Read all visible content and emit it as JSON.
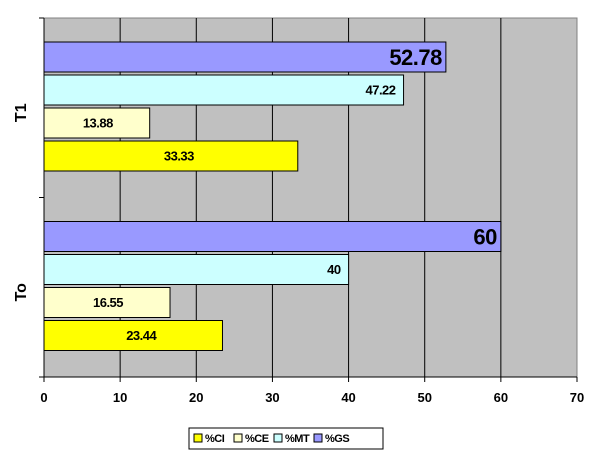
{
  "chart_data": {
    "type": "bar",
    "orientation": "horizontal",
    "categories": [
      "To",
      "T1"
    ],
    "series": [
      {
        "name": "%CI",
        "color": "#ffff00",
        "values": [
          23.44,
          33.33
        ]
      },
      {
        "name": "%CE",
        "color": "#ffffcc",
        "values": [
          16.55,
          13.88
        ]
      },
      {
        "name": "%MT",
        "color": "#ccffff",
        "values": [
          40,
          47.22
        ]
      },
      {
        "name": "%GS",
        "color": "#9999ff",
        "values": [
          60,
          52.78
        ]
      }
    ],
    "data_labels": [
      [
        "23.44",
        "33.33"
      ],
      [
        "16.55",
        "13.88"
      ],
      [
        "40",
        "47.22"
      ],
      [
        "60",
        "52.78"
      ]
    ],
    "xlim": [
      0,
      70
    ],
    "xticks": [
      "0",
      "10",
      "20",
      "30",
      "40",
      "50",
      "60",
      "70"
    ],
    "grid": true,
    "plot_background": "#c0c0c0",
    "legend_position": "bottom",
    "title": "",
    "xlabel": "",
    "ylabel": ""
  }
}
